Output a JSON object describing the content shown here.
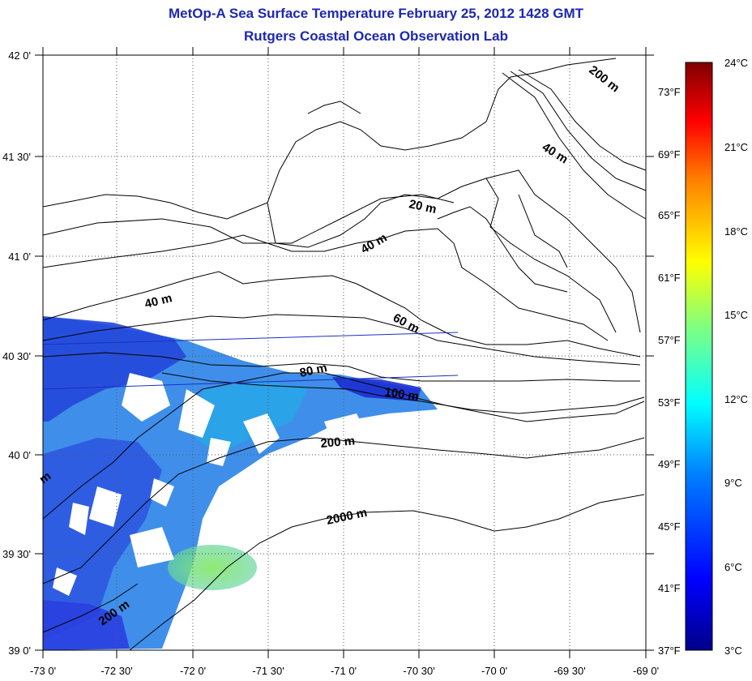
{
  "header": {
    "title": "MetOp-A Sea Surface Temperature February 25, 2012 1428 GMT",
    "subtitle": "Rutgers Coastal Ocean Observation Lab"
  },
  "axes": {
    "x_ticks": [
      "-73 0'",
      "-72 30'",
      "-72 0'",
      "-71 30'",
      "-71 0'",
      "-70 30'",
      "-70 0'",
      "-69 30'",
      "-69 0'"
    ],
    "y_ticks": [
      "42 0'",
      "41 30'",
      "41 0'",
      "40 30'",
      "40 0'",
      "39 30'",
      "39 0'"
    ]
  },
  "colorbar": {
    "celsius": [
      "24°C",
      "21°C",
      "18°C",
      "15°C",
      "12°C",
      "9°C",
      "6°C",
      "3°C"
    ],
    "fahrenheit": [
      "73°F",
      "69°F",
      "65°F",
      "61°F",
      "57°F",
      "53°F",
      "49°F",
      "45°F",
      "41°F",
      "37°F"
    ]
  },
  "contour_labels": {
    "c200m_ne": "200 m",
    "c40m_ne": "40 m",
    "c20m": "20 m",
    "c40m_mid": "40 m",
    "c40m_west": "40 m",
    "c60m": "60 m",
    "c80m": "80 m",
    "c100m": "100 m",
    "c200m_mid": "200 m",
    "c2000m": "2000 m",
    "c200m_sw": "200 m",
    "cm_edge": "m"
  },
  "colors": {
    "title": "#1c28b0",
    "sst_cold": "#2a3fe0",
    "sst_mid": "#2f8ee6",
    "sst_warm": "#7fe07a",
    "grid": "#555555"
  }
}
